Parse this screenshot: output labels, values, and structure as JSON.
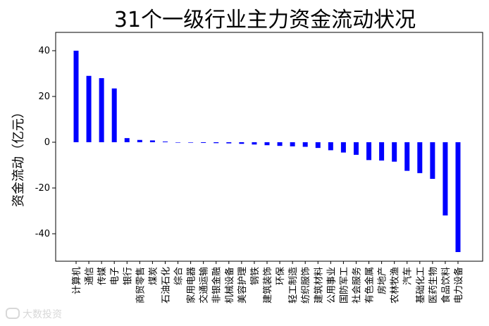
{
  "chart_data": {
    "type": "bar",
    "title": "31个一级行业主力资金流动状况",
    "xlabel": "",
    "ylabel": "资金流动（亿元）",
    "ylim": [
      -52,
      48
    ],
    "yticks": [
      -40,
      -20,
      0,
      20,
      40
    ],
    "bar_color": "#0000ff",
    "grid": false,
    "categories": [
      "计算机",
      "通信",
      "传媒",
      "电子",
      "银行",
      "商贸零售",
      "煤炭",
      "石油石化",
      "综合",
      "家用电器",
      "交通运输",
      "非银金融",
      "机械设备",
      "美容护理",
      "钢铁",
      "建筑装饰",
      "环保",
      "轻工制造",
      "纺织服饰",
      "建筑材料",
      "公用事业",
      "国防军工",
      "社会服务",
      "有色金属",
      "房地产",
      "农林牧渔",
      "汽车",
      "基础化工",
      "医药生物",
      "食品饮料",
      "电力设备"
    ],
    "values": [
      40.0,
      29.0,
      28.0,
      23.5,
      1.8,
      1.0,
      0.8,
      0.3,
      -0.1,
      -0.2,
      -0.3,
      -0.4,
      -0.5,
      -0.7,
      -1.0,
      -1.3,
      -1.6,
      -1.8,
      -2.0,
      -2.5,
      -3.5,
      -4.5,
      -5.5,
      -7.8,
      -8.0,
      -8.5,
      -12.5,
      -13.5,
      -16.0,
      -32.0,
      -48.0
    ]
  },
  "watermark": "大数投资"
}
